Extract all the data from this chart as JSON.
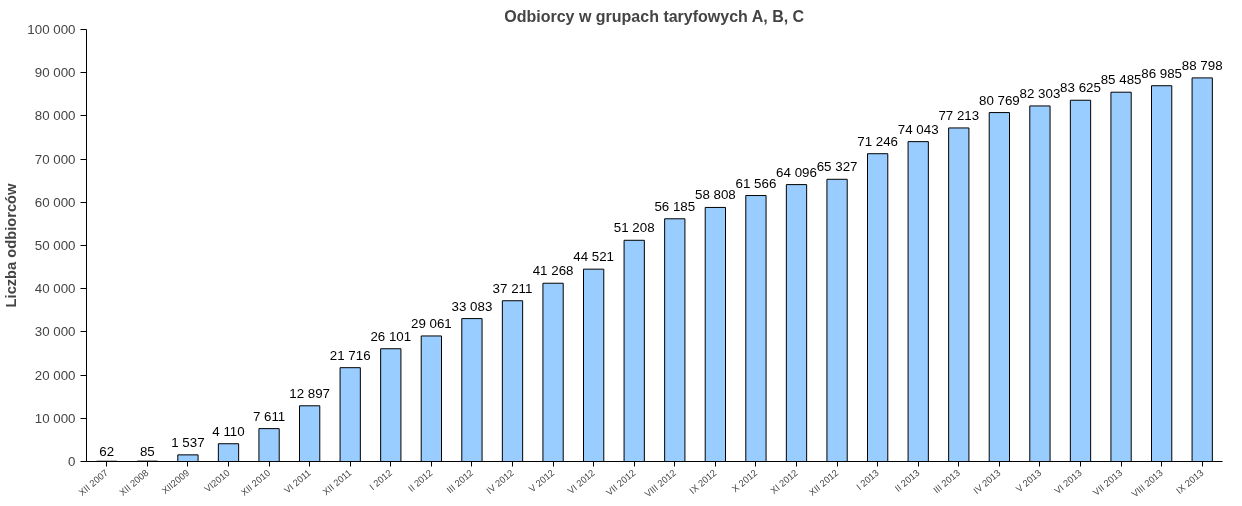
{
  "chart_data": {
    "type": "bar",
    "title": "Odbiorcy w grupach taryfowych A, B, C",
    "ylabel": "Liczba odbiorców",
    "categories": [
      "XII 2007",
      "XII 2008",
      "XII2009",
      "VI2010",
      "XII 2010",
      "VI 2011",
      "XII 2011",
      "I 2012",
      "II 2012",
      "III 2012",
      "IV 2012",
      "V 2012",
      "VI 2012",
      "VII 2012",
      "VIII 2012",
      "IX 2012",
      "X 2012",
      "XI 2012",
      "XII 2012",
      "I 2013",
      "II 2013",
      "III 2013",
      "IV 2013",
      "V 2013",
      "VI 2013",
      "VII 2013",
      "VIII 2013",
      "IX 2013"
    ],
    "values": [
      62,
      85,
      1537,
      4110,
      7611,
      12897,
      21716,
      26101,
      29061,
      33083,
      37211,
      41268,
      44521,
      51208,
      56185,
      58808,
      61566,
      64096,
      65327,
      71246,
      74043,
      77213,
      80769,
      82303,
      83625,
      85485,
      86985,
      88798
    ],
    "value_labels": [
      "62",
      "85",
      "1 537",
      "4 110",
      "7 611",
      "12 897",
      "21 716",
      "26 101",
      "29 061",
      "33 083",
      "37 211",
      "41 268",
      "44 521",
      "51 208",
      "56 185",
      "58 808",
      "61 566",
      "64 096",
      "65 327",
      "71 246",
      "74 043",
      "77 213",
      "80 769",
      "82 303",
      "83 625",
      "85 485",
      "86 985",
      "88 798"
    ],
    "color": "#99ccff",
    "ylim": [
      0,
      100000
    ],
    "yticks": [
      {
        "value": 0,
        "label": "0"
      },
      {
        "value": 10000,
        "label": "10 000"
      },
      {
        "value": 20000,
        "label": "20 000"
      },
      {
        "value": 30000,
        "label": "30 000"
      },
      {
        "value": 40000,
        "label": "40 000"
      },
      {
        "value": 50000,
        "label": "50 000"
      },
      {
        "value": 60000,
        "label": "60 000"
      },
      {
        "value": 70000,
        "label": "70 000"
      },
      {
        "value": 80000,
        "label": "80 000"
      },
      {
        "value": 90000,
        "label": "90 000"
      },
      {
        "value": 100000,
        "label": "100 000"
      }
    ],
    "grid": false
  }
}
